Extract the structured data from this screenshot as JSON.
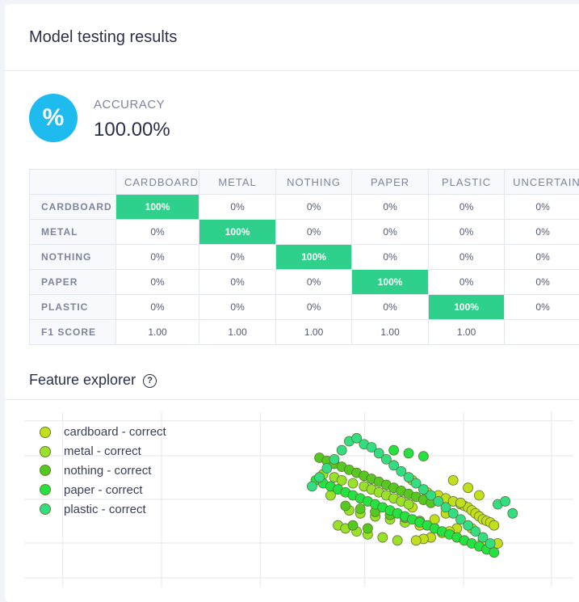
{
  "title": "Model testing results",
  "accuracy": {
    "icon": "percent-icon",
    "symbol": "%",
    "label": "ACCURACY",
    "value": "100.00%",
    "color": "#1dbbee"
  },
  "matrix": {
    "columns": [
      "CARDBOARD",
      "METAL",
      "NOTHING",
      "PAPER",
      "PLASTIC",
      "UNCERTAIN"
    ],
    "rows": [
      {
        "label": "CARDBOARD",
        "cells": [
          "100%",
          "0%",
          "0%",
          "0%",
          "0%",
          "0%"
        ]
      },
      {
        "label": "METAL",
        "cells": [
          "0%",
          "100%",
          "0%",
          "0%",
          "0%",
          "0%"
        ]
      },
      {
        "label": "NOTHING",
        "cells": [
          "0%",
          "0%",
          "100%",
          "0%",
          "0%",
          "0%"
        ]
      },
      {
        "label": "PAPER",
        "cells": [
          "0%",
          "0%",
          "0%",
          "100%",
          "0%",
          "0%"
        ]
      },
      {
        "label": "PLASTIC",
        "cells": [
          "0%",
          "0%",
          "0%",
          "0%",
          "100%",
          "0%"
        ]
      }
    ],
    "f1": {
      "label": "F1 SCORE",
      "cells": [
        "1.00",
        "1.00",
        "1.00",
        "1.00",
        "1.00",
        ""
      ]
    },
    "highlight_color": "#2ed08b"
  },
  "feature_explorer": {
    "title": "Feature explorer",
    "help_icon": "help-circle-icon",
    "legend": [
      {
        "label": "cardboard - correct",
        "color": "#c3df1c"
      },
      {
        "label": "metal - correct",
        "color": "#9ae22a"
      },
      {
        "label": "nothing - correct",
        "color": "#55c91f"
      },
      {
        "label": "paper - correct",
        "color": "#22e340"
      },
      {
        "label": "plastic - correct",
        "color": "#33de82"
      }
    ]
  },
  "chart_data": {
    "type": "scatter",
    "title": "",
    "xlabel": "",
    "ylabel": "",
    "xlim": [
      0,
      100
    ],
    "ylim": [
      0,
      100
    ],
    "grid": true,
    "legend_position": "top-left",
    "series": [
      {
        "name": "cardboard - correct",
        "color": "#c3df1c",
        "x": [
          65,
          68,
          70,
          72,
          74,
          75,
          76,
          77,
          78,
          79,
          80,
          81,
          82,
          83,
          73,
          71,
          69,
          66,
          64,
          62,
          63,
          67,
          70,
          74,
          77,
          80,
          84,
          61,
          72,
          76,
          79
        ],
        "y": [
          52,
          50,
          48,
          46,
          44,
          43,
          42,
          40,
          38,
          36,
          34,
          33,
          32,
          30,
          28,
          26,
          25,
          22,
          21,
          20,
          30,
          34,
          38,
          45,
          28,
          20,
          18,
          42,
          60,
          55,
          50
        ]
      },
      {
        "name": "metal - correct",
        "color": "#9ae22a",
        "x": [
          37,
          40,
          42,
          45,
          48,
          50,
          52,
          54,
          56,
          58,
          60,
          44,
          47,
          51,
          55,
          59,
          41,
          43,
          46,
          49,
          53,
          57,
          39,
          61
        ],
        "y": [
          64,
          62,
          60,
          58,
          56,
          54,
          52,
          50,
          48,
          46,
          44,
          40,
          38,
          36,
          34,
          32,
          30,
          28,
          26,
          24,
          22,
          20,
          50,
          60
        ]
      },
      {
        "name": "nothing - correct",
        "color": "#55c91f",
        "x": [
          36,
          38,
          40,
          42,
          44,
          46,
          48,
          50,
          52,
          54,
          56,
          58,
          60,
          62,
          64,
          66,
          43,
          47,
          51,
          55,
          59,
          63,
          45,
          49
        ],
        "y": [
          75,
          73,
          71,
          69,
          67,
          65,
          63,
          61,
          59,
          57,
          55,
          53,
          51,
          49,
          47,
          45,
          43,
          41,
          39,
          37,
          35,
          33,
          30,
          28
        ]
      },
      {
        "name": "paper - correct",
        "color": "#22e340",
        "x": [
          35,
          37,
          39,
          41,
          43,
          45,
          47,
          49,
          51,
          53,
          55,
          57,
          59,
          61,
          63,
          65,
          67,
          69,
          71,
          73,
          75,
          77,
          79,
          81,
          83,
          56,
          60,
          64
        ],
        "y": [
          60,
          58,
          56,
          54,
          52,
          50,
          48,
          46,
          44,
          42,
          40,
          38,
          36,
          34,
          32,
          30,
          28,
          26,
          24,
          22,
          20,
          18,
          16,
          14,
          12,
          80,
          78,
          76
        ]
      },
      {
        "name": "plastic - correct",
        "color": "#33de82",
        "x": [
          34,
          36,
          38,
          40,
          42,
          44,
          46,
          48,
          50,
          52,
          54,
          56,
          58,
          60,
          62,
          64,
          66,
          68,
          70,
          72,
          74,
          76,
          78,
          80,
          82,
          84,
          86,
          88
        ],
        "y": [
          56,
          62,
          68,
          74,
          80,
          86,
          88,
          84,
          82,
          78,
          74,
          70,
          66,
          62,
          58,
          54,
          50,
          46,
          42,
          38,
          34,
          30,
          26,
          22,
          18,
          44,
          46,
          38
        ]
      }
    ]
  }
}
